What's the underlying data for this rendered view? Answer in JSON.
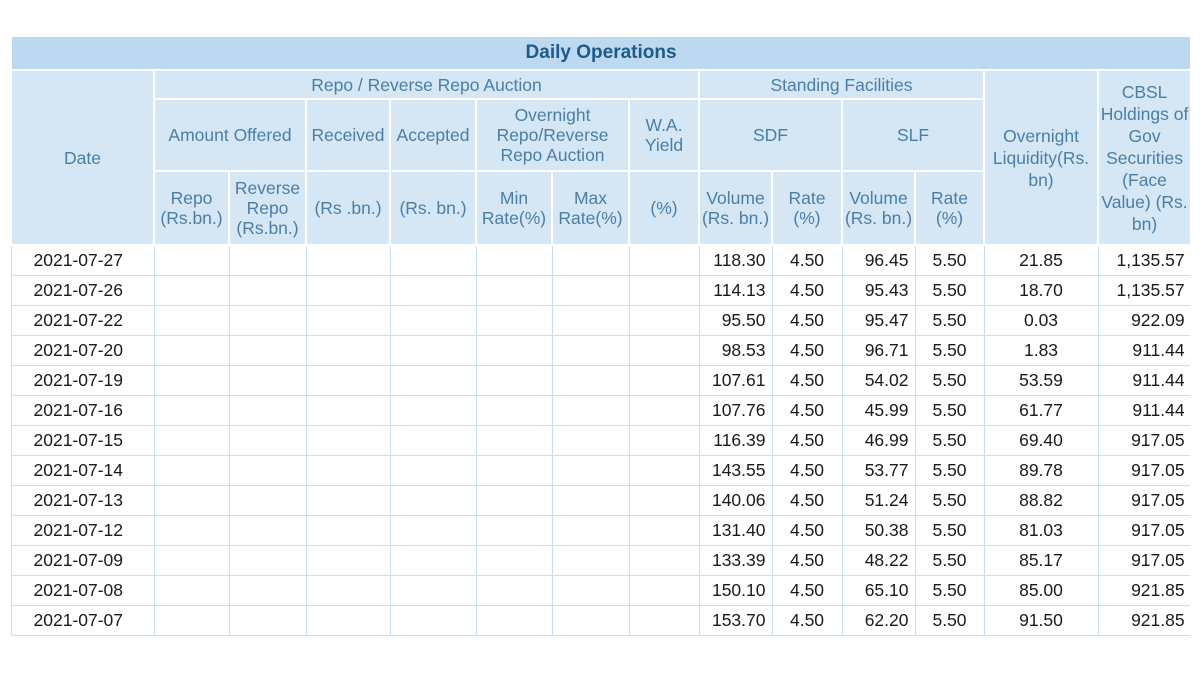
{
  "table": {
    "title": "Daily Operations",
    "headers": {
      "date": "Date",
      "repo_group": "Repo / Reverse Repo Auction",
      "standing_group": "Standing Facilities",
      "amount_offered": "Amount Offered",
      "received": "Received",
      "accepted": "Accepted",
      "overnight_auction": "Overnight Repo/Reverse Repo Auction",
      "wa_yield": "W.A. Yield",
      "sdf": "SDF",
      "slf": "SLF",
      "overnight_liquidity": "Overnight Liquidity(Rs. bn)",
      "cbsl_holdings": "CBSL Holdings of Gov Securities (Face Value) (Rs. bn)",
      "repo": "Repo (Rs.bn.)",
      "reverse_repo": "Reverse Repo (Rs.bn.)",
      "received_unit": "(Rs .bn.)",
      "accepted_unit": "(Rs. bn.)",
      "min_rate": "Min Rate(%)",
      "max_rate": "Max Rate(%)",
      "yield_unit": "(%)",
      "sdf_volume": "Volume (Rs. bn.)",
      "sdf_rate": "Rate (%)",
      "slf_volume": "Volume (Rs. bn.)",
      "slf_rate": "Rate (%)"
    },
    "rows": [
      {
        "date": "2021-07-27",
        "sdf_vol": "118.30",
        "sdf_rate": "4.50",
        "slf_vol": "96.45",
        "slf_rate": "5.50",
        "liquidity": "21.85",
        "holdings": "1,135.57"
      },
      {
        "date": "2021-07-26",
        "sdf_vol": "114.13",
        "sdf_rate": "4.50",
        "slf_vol": "95.43",
        "slf_rate": "5.50",
        "liquidity": "18.70",
        "holdings": "1,135.57"
      },
      {
        "date": "2021-07-22",
        "sdf_vol": "95.50",
        "sdf_rate": "4.50",
        "slf_vol": "95.47",
        "slf_rate": "5.50",
        "liquidity": "0.03",
        "holdings": "922.09"
      },
      {
        "date": "2021-07-20",
        "sdf_vol": "98.53",
        "sdf_rate": "4.50",
        "slf_vol": "96.71",
        "slf_rate": "5.50",
        "liquidity": "1.83",
        "holdings": "911.44"
      },
      {
        "date": "2021-07-19",
        "sdf_vol": "107.61",
        "sdf_rate": "4.50",
        "slf_vol": "54.02",
        "slf_rate": "5.50",
        "liquidity": "53.59",
        "holdings": "911.44"
      },
      {
        "date": "2021-07-16",
        "sdf_vol": "107.76",
        "sdf_rate": "4.50",
        "slf_vol": "45.99",
        "slf_rate": "5.50",
        "liquidity": "61.77",
        "holdings": "911.44"
      },
      {
        "date": "2021-07-15",
        "sdf_vol": "116.39",
        "sdf_rate": "4.50",
        "slf_vol": "46.99",
        "slf_rate": "5.50",
        "liquidity": "69.40",
        "holdings": "917.05"
      },
      {
        "date": "2021-07-14",
        "sdf_vol": "143.55",
        "sdf_rate": "4.50",
        "slf_vol": "53.77",
        "slf_rate": "5.50",
        "liquidity": "89.78",
        "holdings": "917.05"
      },
      {
        "date": "2021-07-13",
        "sdf_vol": "140.06",
        "sdf_rate": "4.50",
        "slf_vol": "51.24",
        "slf_rate": "5.50",
        "liquidity": "88.82",
        "holdings": "917.05"
      },
      {
        "date": "2021-07-12",
        "sdf_vol": "131.40",
        "sdf_rate": "4.50",
        "slf_vol": "50.38",
        "slf_rate": "5.50",
        "liquidity": "81.03",
        "holdings": "917.05"
      },
      {
        "date": "2021-07-09",
        "sdf_vol": "133.39",
        "sdf_rate": "4.50",
        "slf_vol": "48.22",
        "slf_rate": "5.50",
        "liquidity": "85.17",
        "holdings": "917.05"
      },
      {
        "date": "2021-07-08",
        "sdf_vol": "150.10",
        "sdf_rate": "4.50",
        "slf_vol": "65.10",
        "slf_rate": "5.50",
        "liquidity": "85.00",
        "holdings": "921.85"
      },
      {
        "date": "2021-07-07",
        "sdf_vol": "153.70",
        "sdf_rate": "4.50",
        "slf_vol": "62.20",
        "slf_rate": "5.50",
        "liquidity": "91.50",
        "holdings": "921.85"
      }
    ]
  }
}
